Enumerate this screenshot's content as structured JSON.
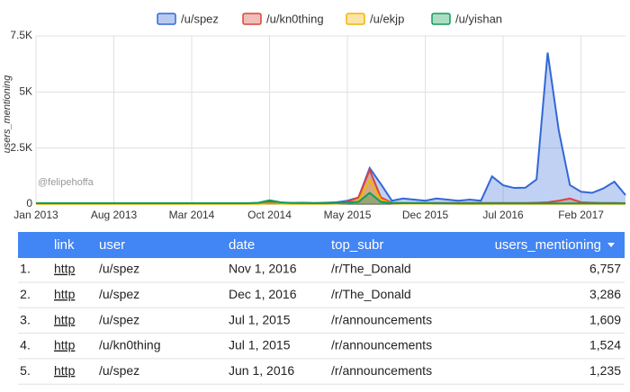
{
  "chart_data": {
    "type": "area",
    "y_label": "users_mentioning",
    "watermark": "@felipehoffa",
    "x": [
      "Jan 2013",
      "Feb 2013",
      "Mar 2013",
      "Apr 2013",
      "May 2013",
      "Jun 2013",
      "Jul 2013",
      "Aug 2013",
      "Sep 2013",
      "Oct 2013",
      "Nov 2013",
      "Dec 2013",
      "Jan 2014",
      "Feb 2014",
      "Mar 2014",
      "Apr 2014",
      "May 2014",
      "Jun 2014",
      "Jul 2014",
      "Aug 2014",
      "Sep 2014",
      "Oct 2014",
      "Nov 2014",
      "Dec 2014",
      "Jan 2015",
      "Feb 2015",
      "Mar 2015",
      "Apr 2015",
      "May 2015",
      "Jun 2015",
      "Jul 2015",
      "Aug 2015",
      "Sep 2015",
      "Oct 2015",
      "Nov 2015",
      "Dec 2015",
      "Jan 2016",
      "Feb 2016",
      "Mar 2016",
      "Apr 2016",
      "May 2016",
      "Jun 2016",
      "Jul 2016",
      "Aug 2016",
      "Sep 2016",
      "Oct 2016",
      "Nov 2016",
      "Dec 2016",
      "Jan 2017",
      "Feb 2017",
      "Mar 2017",
      "Apr 2017",
      "May 2017",
      "Jun 2017"
    ],
    "xticks": [
      "Jan 2013",
      "Aug 2013",
      "Mar 2014",
      "Oct 2014",
      "May 2015",
      "Dec 2015",
      "Jul 2016",
      "Feb 2017"
    ],
    "ylim": [
      0,
      7500
    ],
    "yticks": [
      0,
      {
        "value": 2500,
        "label": "2.5K"
      },
      {
        "value": 5000,
        "label": "5K"
      },
      {
        "value": 7500,
        "label": "7.5K"
      }
    ],
    "grid": true,
    "legend": "top",
    "series": [
      {
        "name": "/u/spez",
        "color": "#3367d6",
        "values": [
          20,
          25,
          30,
          30,
          30,
          25,
          30,
          35,
          30,
          30,
          30,
          30,
          30,
          30,
          30,
          30,
          30,
          30,
          30,
          30,
          40,
          150,
          60,
          50,
          60,
          50,
          60,
          80,
          150,
          300,
          1609,
          900,
          150,
          250,
          200,
          150,
          250,
          200,
          150,
          200,
          150,
          1235,
          840,
          720,
          730,
          1100,
          6757,
          3286,
          850,
          550,
          500,
          700,
          1000,
          400
        ]
      },
      {
        "name": "/u/kn0thing",
        "color": "#db4437",
        "values": [
          20,
          20,
          20,
          20,
          20,
          20,
          20,
          20,
          20,
          20,
          20,
          20,
          20,
          20,
          20,
          20,
          20,
          20,
          20,
          20,
          20,
          80,
          40,
          30,
          30,
          30,
          30,
          40,
          100,
          300,
          1524,
          300,
          60,
          50,
          50,
          50,
          50,
          50,
          50,
          50,
          50,
          50,
          50,
          50,
          50,
          60,
          80,
          150,
          250,
          80,
          60,
          50,
          50,
          40
        ]
      },
      {
        "name": "/u/ekjp",
        "color": "#f4b400",
        "values": [
          10,
          10,
          10,
          10,
          10,
          10,
          10,
          10,
          10,
          10,
          10,
          10,
          10,
          10,
          10,
          10,
          10,
          10,
          10,
          10,
          10,
          30,
          20,
          10,
          10,
          10,
          10,
          20,
          40,
          150,
          1100,
          200,
          30,
          20,
          20,
          20,
          20,
          20,
          10,
          10,
          10,
          10,
          10,
          10,
          10,
          10,
          10,
          10,
          10,
          10,
          10,
          10,
          10,
          10
        ]
      },
      {
        "name": "/u/yishan",
        "color": "#0f9d58",
        "values": [
          40,
          40,
          40,
          40,
          40,
          40,
          40,
          40,
          40,
          40,
          40,
          40,
          40,
          40,
          40,
          40,
          40,
          40,
          40,
          40,
          60,
          170,
          80,
          50,
          50,
          40,
          40,
          50,
          60,
          100,
          500,
          100,
          40,
          40,
          40,
          40,
          30,
          30,
          30,
          30,
          30,
          30,
          30,
          30,
          30,
          30,
          30,
          30,
          30,
          30,
          30,
          30,
          30,
          30
        ]
      }
    ]
  },
  "table": {
    "columns": [
      "link",
      "user",
      "date",
      "top_subr",
      "users_mentioning"
    ],
    "rows": [
      [
        "1.",
        "http",
        "/u/spez",
        "Nov 1, 2016",
        "/r/The_Donald",
        "6,757"
      ],
      [
        "2.",
        "http",
        "/u/spez",
        "Dec 1, 2016",
        "/r/The_Donald",
        "3,286"
      ],
      [
        "3.",
        "http",
        "/u/spez",
        "Jul 1, 2015",
        "/r/announcements",
        "1,609"
      ],
      [
        "4.",
        "http",
        "/u/kn0thing",
        "Jul 1, 2015",
        "/r/announcements",
        "1,524"
      ],
      [
        "5.",
        "http",
        "/u/spez",
        "Jun 1, 2016",
        "/r/announcements",
        "1,235"
      ]
    ]
  }
}
